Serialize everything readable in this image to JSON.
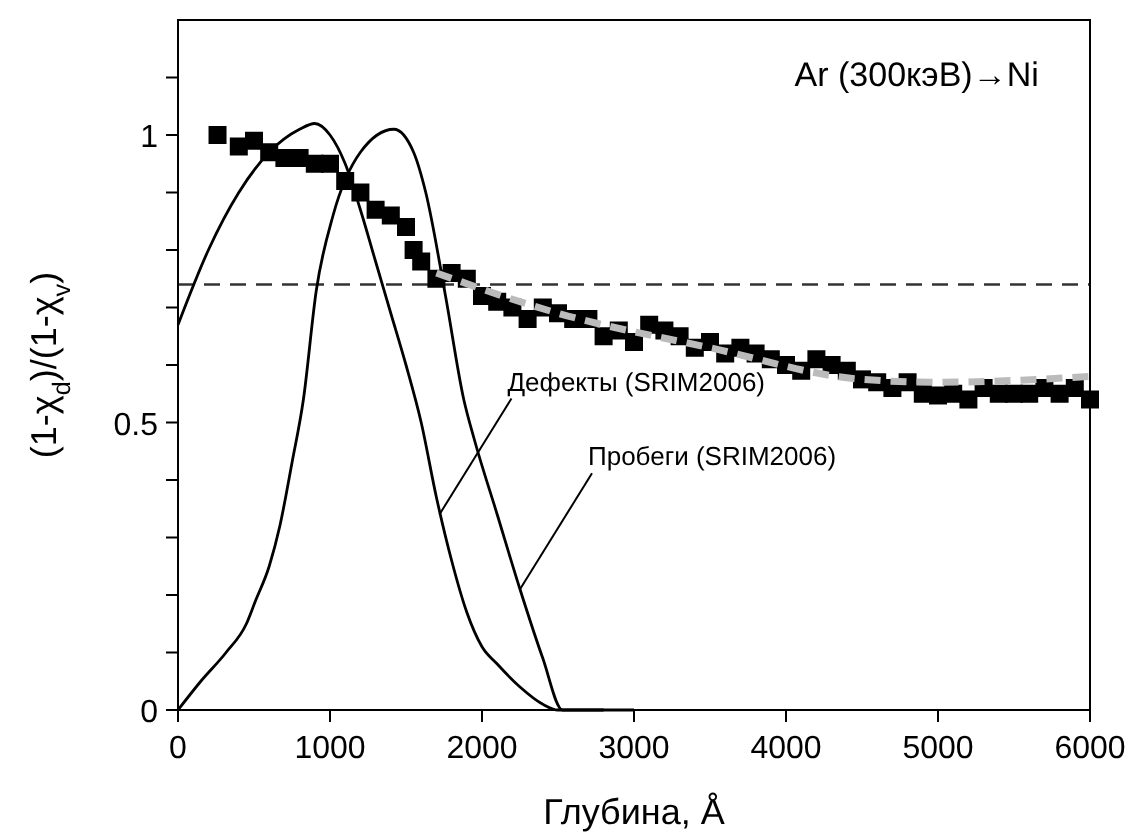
{
  "chart_data": {
    "type": "line",
    "title": "Ar (300кэВ)→Ni",
    "xlabel": "Глубина, Å",
    "ylabel": "(1-χ$_{d}$)/(1-χ$_{v}$)",
    "xlim": [
      0,
      6000
    ],
    "xticks": [
      0,
      1000,
      2000,
      3000,
      4000,
      5000,
      6000
    ],
    "ylim": [
      0,
      1.2
    ],
    "yticks": [
      0,
      {
        "value": 0.1,
        "label": null
      },
      {
        "value": 0.2,
        "label": null
      },
      {
        "value": 0.3,
        "label": null
      },
      {
        "value": 0.4,
        "label": null
      },
      0.5,
      {
        "value": 0.6,
        "label": null
      },
      {
        "value": 0.7,
        "label": null
      },
      {
        "value": 0.8,
        "label": null
      },
      {
        "value": 0.9,
        "label": null
      },
      1,
      {
        "value": 1.1,
        "label": null
      }
    ],
    "grid": false,
    "ref_lines": [
      {
        "axis": "y",
        "value": 0.74,
        "color": "#333333",
        "line_style": "dashed"
      }
    ],
    "annotations": [
      {
        "text": "Дефекты (SRIM2006)",
        "x": 1720,
        "y": 0.34
      },
      {
        "text": "Пробеги (SRIM2006)",
        "x": 2250,
        "y": 0.21
      }
    ],
    "series": [
      {
        "color": "#000000",
        "marker": "none",
        "line_style": "solid",
        "x": [
          0,
          200,
          400,
          600,
          800,
          900,
          1000,
          1100,
          1200,
          1300,
          1400,
          1500,
          1600,
          1700,
          1800,
          1900,
          2000,
          2100,
          2250,
          2400,
          2500,
          2650,
          2800
        ],
        "values": [
          0.67,
          0.8,
          0.9,
          0.97,
          1.01,
          1.02,
          1.0,
          0.95,
          0.87,
          0.78,
          0.69,
          0.6,
          0.5,
          0.37,
          0.26,
          0.17,
          0.11,
          0.08,
          0.04,
          0.01,
          0,
          0,
          0
        ]
      },
      {
        "color": "#000000",
        "marker": "none",
        "line_style": "solid",
        "x": [
          0,
          150,
          316,
          450,
          510,
          600,
          670,
          750,
          825,
          910,
          1020,
          1200,
          1420,
          1550,
          1630,
          1760,
          1880,
          1950,
          2100,
          2250,
          2400,
          2530,
          2700,
          2900,
          3000
        ],
        "values": [
          0,
          0.05,
          0.1,
          0.15,
          0.19,
          0.25,
          0.32,
          0.43,
          0.54,
          0.73,
          0.86,
          0.97,
          1.01,
          0.97,
          0.9,
          0.72,
          0.54,
          0.47,
          0.34,
          0.21,
          0.09,
          0,
          0,
          0,
          0
        ]
      },
      {
        "type": "scatter",
        "color": "#000000",
        "marker": "square",
        "x": [
          260,
          400,
          500,
          600,
          700,
          800,
          900,
          1000,
          1100,
          1200,
          1300,
          1400,
          1500,
          1550,
          1600,
          1700,
          1800,
          1900,
          2000,
          2100,
          2200,
          2300,
          2400,
          2500,
          2600,
          2700,
          2800,
          2900,
          3000,
          3100,
          3200,
          3300,
          3400,
          3500,
          3600,
          3700,
          3800,
          3900,
          4000,
          4100,
          4200,
          4300,
          4400,
          4500,
          4600,
          4700,
          4800,
          4900,
          5000,
          5100,
          5200,
          5300,
          5400,
          5500,
          5600,
          5700,
          5800,
          5900,
          6000
        ],
        "values": [
          1.0,
          0.98,
          0.99,
          0.97,
          0.96,
          0.96,
          0.95,
          0.95,
          0.92,
          0.9,
          0.87,
          0.86,
          0.84,
          0.8,
          0.78,
          0.75,
          0.76,
          0.75,
          0.72,
          0.71,
          0.7,
          0.68,
          0.7,
          0.69,
          0.68,
          0.68,
          0.65,
          0.66,
          0.64,
          0.67,
          0.66,
          0.65,
          0.63,
          0.64,
          0.62,
          0.63,
          0.62,
          0.61,
          0.6,
          0.59,
          0.61,
          0.6,
          0.59,
          0.575,
          0.57,
          0.56,
          0.57,
          0.55,
          0.547,
          0.55,
          0.54,
          0.56,
          0.55,
          0.55,
          0.55,
          0.56,
          0.55,
          0.56,
          0.54
        ]
      },
      {
        "color": "#bbbbbb",
        "marker": "none",
        "line_style": "dashed",
        "x": [
          1700,
          2500,
          3500,
          4500,
          5000,
          6000
        ],
        "values": [
          0.76,
          0.69,
          0.63,
          0.575,
          0.57,
          0.58
        ]
      }
    ]
  }
}
